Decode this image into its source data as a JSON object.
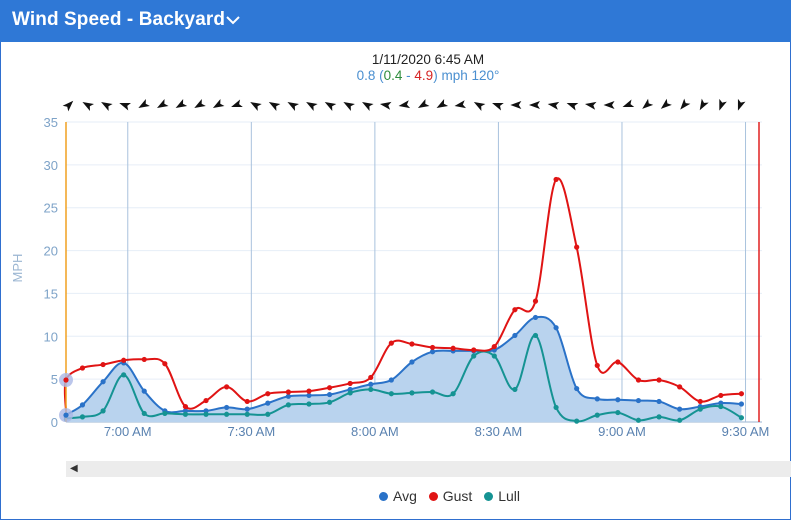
{
  "header": {
    "title": "Wind Speed - Backyard"
  },
  "readout": {
    "time": "1/11/2020 6:45 AM",
    "avg": "0.8",
    "lull": "0.4",
    "sep": " - ",
    "gust": "4.9",
    "unit_dir": " mph 120°"
  },
  "legend": {
    "avg": "Avg",
    "gust": "Gust",
    "lull": "Lull"
  },
  "colors": {
    "avg": "#2a72c8",
    "gust": "#e01414",
    "lull": "#159393",
    "area": "#b9d3ee",
    "grid": "#a9c2dd",
    "now_line": "#f0a020",
    "end_line": "#e02020"
  },
  "chart_data": {
    "type": "line",
    "ylabel": "MPH",
    "ylim": [
      0,
      35
    ],
    "yticks": [
      0,
      5,
      10,
      15,
      20,
      25,
      30,
      35
    ],
    "xticks": [
      "7:00 AM",
      "7:30 AM",
      "8:00 AM",
      "8:30 AM",
      "9:00 AM",
      "9:30 AM"
    ],
    "x": [
      "6:45",
      "6:49",
      "6:54",
      "6:59",
      "7:04",
      "7:09",
      "7:14",
      "7:19",
      "7:24",
      "7:29",
      "7:34",
      "7:39",
      "7:44",
      "7:49",
      "7:54",
      "7:59",
      "8:04",
      "8:09",
      "8:14",
      "8:19",
      "8:24",
      "8:29",
      "8:34",
      "8:39",
      "8:44",
      "8:49",
      "8:54",
      "8:59",
      "9:04",
      "9:09",
      "9:14",
      "9:19",
      "9:24",
      "9:29"
    ],
    "series": [
      {
        "name": "Avg",
        "values": [
          0.8,
          2.0,
          4.7,
          6.9,
          3.6,
          1.3,
          1.3,
          1.3,
          1.7,
          1.5,
          2.2,
          3.0,
          3.1,
          3.2,
          3.8,
          4.4,
          4.9,
          7.0,
          8.2,
          8.3,
          8.3,
          8.4,
          10.1,
          12.2,
          11.0,
          3.9,
          2.7,
          2.6,
          2.5,
          2.4,
          1.5,
          1.8,
          2.2,
          2.1
        ]
      },
      {
        "name": "Gust",
        "values": [
          4.9,
          6.3,
          6.7,
          7.2,
          7.3,
          6.8,
          1.8,
          2.5,
          4.1,
          2.4,
          3.3,
          3.5,
          3.6,
          4.0,
          4.5,
          5.2,
          9.2,
          9.1,
          8.7,
          8.6,
          8.4,
          8.8,
          13.1,
          14.1,
          28.3,
          20.4,
          6.6,
          7.0,
          4.9,
          4.9,
          4.1,
          2.4,
          3.1,
          3.3
        ]
      },
      {
        "name": "Lull",
        "values": [
          0.4,
          0.6,
          1.3,
          5.5,
          1.0,
          1.0,
          0.9,
          0.9,
          0.9,
          0.9,
          0.9,
          2.0,
          2.1,
          2.3,
          3.4,
          3.8,
          3.3,
          3.4,
          3.5,
          3.3,
          7.7,
          7.7,
          3.8,
          10.1,
          1.7,
          0.1,
          0.8,
          1.1,
          0.2,
          0.6,
          0.2,
          1.5,
          1.8,
          0.5
        ]
      }
    ],
    "direction_arrows": "wind direction arrows along top edge",
    "grid": true,
    "legend_position": "bottom"
  }
}
